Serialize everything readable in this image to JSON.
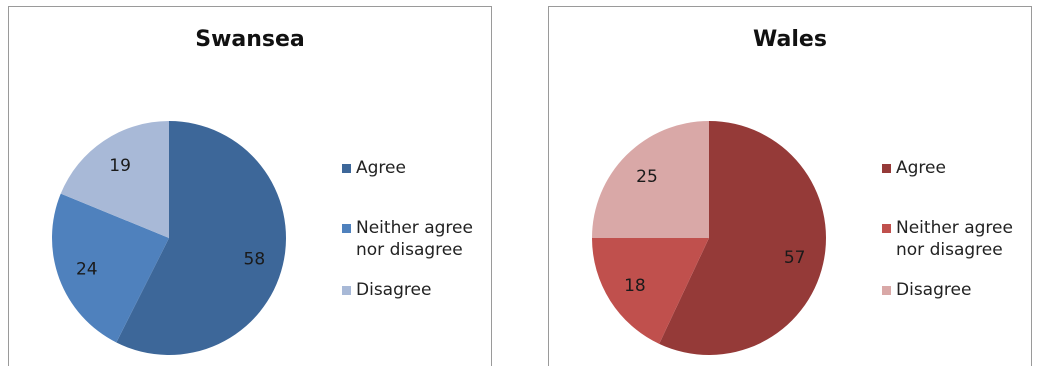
{
  "chart_data": [
    {
      "type": "pie",
      "title": "Swansea",
      "categories": [
        "Agree",
        "Neither agree\nnor disagree",
        "Disagree"
      ],
      "values": [
        58,
        24,
        19
      ],
      "colors": [
        "#3d6799",
        "#4f81bd",
        "#a8b9d7"
      ],
      "legend_position": "right"
    },
    {
      "type": "pie",
      "title": "Wales",
      "categories": [
        "Agree",
        "Neither agree\nnor disagree",
        "Disagree"
      ],
      "values": [
        57,
        18,
        25
      ],
      "colors": [
        "#953a38",
        "#c0504d",
        "#d9a8a7"
      ],
      "legend_position": "right"
    }
  ]
}
